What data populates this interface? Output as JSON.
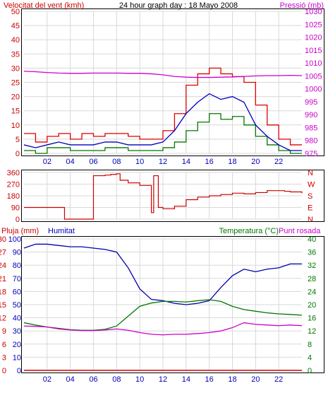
{
  "colors": {
    "wind": "#dd0000",
    "wind_avg": "#0000bb",
    "wind_min": "#007700",
    "pressure": "#cc00cc",
    "direction": "#cc0000",
    "rain": "#cc0000",
    "humidity": "#0000aa",
    "temperature": "#007700",
    "dewpoint": "#cc00cc",
    "grid": "#d8d8d8",
    "axis_red": "#cc0000",
    "axis_magenta": "#cc00cc",
    "axis_blue": "#0000bb",
    "axis_green": "#007700"
  },
  "chart_data": [
    {
      "type": "line",
      "title": "24 hour graph day : 18 Mayo 2008",
      "xlabel": "",
      "x_ticks": [
        "02",
        "04",
        "06",
        "08",
        "10",
        "12",
        "14",
        "16",
        "18",
        "20",
        "22"
      ],
      "y_left": {
        "label": "Velocitat del vent (kmh)",
        "range": [
          0,
          50
        ],
        "ticks": [
          "0",
          "5",
          "10",
          "15",
          "20",
          "25",
          "30",
          "35",
          "40",
          "45",
          "50"
        ]
      },
      "y_right": {
        "label": "Pressió (mb)",
        "range": [
          975,
          1030
        ],
        "ticks": [
          "975",
          "980",
          "985",
          "990",
          "995",
          "1000",
          "1005",
          "1010",
          "1015",
          "1020",
          "1025",
          "1030"
        ]
      },
      "grid": true,
      "series": [
        {
          "name": "Velocitat del vent (kmh)",
          "axis": "left",
          "style": "step",
          "x": [
            0,
            1,
            2,
            3,
            4,
            5,
            6,
            7,
            8,
            9,
            10,
            11,
            12,
            13,
            14,
            15,
            16,
            17,
            18,
            19,
            20,
            21,
            22,
            23,
            24
          ],
          "values": [
            7,
            4,
            6,
            7,
            5,
            7,
            6,
            7,
            7,
            6,
            5,
            5,
            8,
            14,
            24,
            28,
            30,
            28,
            27,
            25,
            17,
            10,
            5,
            3,
            3
          ]
        },
        {
          "name": "",
          "axis": "left",
          "style": "line",
          "x": [
            0,
            1,
            2,
            3,
            4,
            5,
            6,
            7,
            8,
            9,
            10,
            11,
            12,
            13,
            14,
            15,
            16,
            17,
            18,
            19,
            20,
            21,
            22,
            23,
            24
          ],
          "values": [
            3,
            2,
            3,
            4,
            3,
            3,
            3,
            4,
            4,
            3,
            3,
            3,
            4,
            8,
            14,
            18,
            21,
            19,
            20,
            18,
            10,
            6,
            3,
            1,
            1
          ]
        },
        {
          "name": "",
          "axis": "left",
          "style": "step",
          "x": [
            0,
            1,
            2,
            3,
            4,
            5,
            6,
            7,
            8,
            9,
            10,
            11,
            12,
            13,
            14,
            15,
            16,
            17,
            18,
            19,
            20,
            21,
            22,
            23,
            24
          ],
          "values": [
            1,
            0,
            2,
            2,
            1,
            1,
            1,
            2,
            2,
            1,
            1,
            1,
            2,
            4,
            8,
            11,
            14,
            12,
            13,
            10,
            6,
            3,
            1,
            0,
            0
          ]
        },
        {
          "name": "Pressió (mb)",
          "axis": "right",
          "style": "line",
          "x": [
            0,
            1,
            2,
            3,
            4,
            5,
            6,
            7,
            8,
            9,
            10,
            11,
            12,
            13,
            14,
            15,
            16,
            17,
            18,
            19,
            20,
            21,
            22,
            23,
            24
          ],
          "values": [
            1006.8,
            1006.6,
            1006.3,
            1006.1,
            1006.0,
            1006.0,
            1006.1,
            1006.1,
            1006.1,
            1006.0,
            1006.0,
            1005.8,
            1005.4,
            1004.8,
            1004.5,
            1004.4,
            1004.4,
            1004.5,
            1004.6,
            1004.8,
            1005.0,
            1005.1,
            1005.1,
            1005.2,
            1005.1
          ]
        }
      ]
    },
    {
      "type": "line",
      "title": "",
      "x_ticks": [],
      "y_left": {
        "label": "",
        "range": [
          0,
          360
        ],
        "ticks": [
          "0",
          "90",
          "180",
          "270",
          "360"
        ]
      },
      "y_right": {
        "label": "",
        "ticks": [
          "N",
          "E",
          "S",
          "W",
          "N"
        ]
      },
      "grid": true,
      "series": [
        {
          "name": "",
          "axis": "left",
          "style": "step",
          "x": [
            0,
            2,
            3.5,
            5.5,
            6,
            7,
            7.5,
            8,
            8.3,
            9,
            10,
            11,
            11.2,
            11.6,
            12,
            13,
            14,
            15,
            16,
            17,
            18,
            19,
            20,
            21,
            22,
            22.5,
            23,
            24
          ],
          "values": [
            90,
            90,
            0,
            0,
            335,
            340,
            345,
            350,
            300,
            280,
            260,
            50,
            335,
            90,
            80,
            100,
            150,
            170,
            180,
            190,
            200,
            195,
            205,
            220,
            220,
            215,
            210,
            200
          ]
        }
      ]
    },
    {
      "type": "line",
      "title": "",
      "x_ticks": [
        "02",
        "04",
        "06",
        "08",
        "10",
        "12",
        "14",
        "16",
        "18",
        "20",
        "22"
      ],
      "y_left": {
        "label": "Pluja (mm)",
        "range": [
          0,
          30
        ],
        "ticks": [
          "0",
          "3",
          "6",
          "9",
          "12",
          "15",
          "18",
          "21",
          "24",
          "27",
          "30"
        ]
      },
      "y_left2": {
        "label": "Humitat",
        "range": [
          0,
          100
        ],
        "ticks": [
          "0",
          "10",
          "20",
          "30",
          "40",
          "50",
          "60",
          "70",
          "80",
          "90",
          "100"
        ]
      },
      "y_right": {
        "label": "Temperatura (°C)",
        "range": [
          0,
          40
        ],
        "ticks": [
          "0",
          "4",
          "8",
          "12",
          "16",
          "20",
          "24",
          "28",
          "32",
          "36",
          "40"
        ]
      },
      "y_right_label2": "Punt rosada",
      "grid": true,
      "series": [
        {
          "name": "Pluja (mm)",
          "axis": "left",
          "values": [
            0,
            0,
            0,
            0,
            0,
            0,
            0,
            0,
            0,
            0,
            0,
            0,
            0,
            0,
            0,
            0,
            0,
            0,
            0,
            0,
            0,
            0,
            0,
            0,
            0
          ],
          "x": [
            0,
            1,
            2,
            3,
            4,
            5,
            6,
            7,
            8,
            9,
            10,
            11,
            12,
            13,
            14,
            15,
            16,
            17,
            18,
            19,
            20,
            21,
            22,
            23,
            24
          ]
        },
        {
          "name": "Humitat",
          "axis": "left2",
          "x": [
            0,
            1,
            2,
            3,
            4,
            5,
            6,
            7,
            8,
            9,
            10,
            11,
            12,
            13,
            14,
            15,
            16,
            17,
            18,
            19,
            20,
            21,
            22,
            23,
            24
          ],
          "values": [
            93,
            96,
            96,
            95,
            94,
            94,
            93,
            92,
            90,
            78,
            62,
            54,
            53,
            51,
            50,
            51,
            53,
            63,
            72,
            77,
            75,
            77,
            78,
            81,
            81
          ]
        },
        {
          "name": "Temperatura (°C)",
          "axis": "right",
          "x": [
            0,
            1,
            2,
            3,
            4,
            5,
            6,
            7,
            8,
            9,
            10,
            11,
            12,
            13,
            14,
            15,
            16,
            17,
            18,
            19,
            20,
            21,
            22,
            23,
            24
          ],
          "values": [
            14.5,
            13.8,
            13.2,
            12.8,
            12.4,
            12.2,
            12.2,
            12.5,
            13.5,
            16.5,
            19.5,
            20.5,
            21,
            21,
            20.8,
            21.2,
            21.5,
            21,
            19.5,
            18.5,
            18,
            17.5,
            17.2,
            17.0,
            16.8
          ]
        },
        {
          "name": "Punt rosada",
          "axis": "right",
          "x": [
            0,
            1,
            2,
            3,
            4,
            5,
            6,
            7,
            8,
            9,
            10,
            11,
            12,
            13,
            14,
            15,
            16,
            17,
            18,
            19,
            20,
            21,
            22,
            23,
            24
          ],
          "values": [
            13.5,
            13.4,
            13.2,
            12.6,
            12.3,
            12.1,
            12.1,
            12.3,
            12.6,
            12.2,
            11.5,
            11.0,
            10.8,
            11.0,
            11.0,
            11.2,
            11.5,
            12.0,
            13.0,
            14.5,
            14.0,
            13.8,
            13.6,
            13.8,
            13.6
          ]
        }
      ]
    }
  ]
}
